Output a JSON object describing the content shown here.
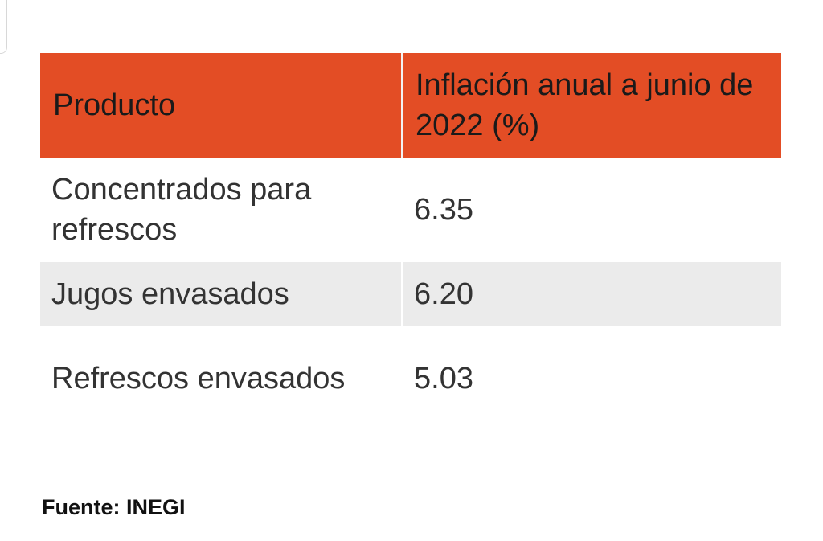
{
  "chart_data": {
    "type": "table",
    "columns": [
      "Producto",
      "Inflación anual a junio de 2022 (%)"
    ],
    "rows": [
      {
        "producto": "Concentrados para refrescos",
        "valor": "6.35"
      },
      {
        "producto": "Jugos envasados",
        "valor": "6.20"
      },
      {
        "producto": "Refrescos envasados",
        "valor": "5.03"
      }
    ],
    "header_color": "#e34d25",
    "stripe_color": "#ebebeb"
  },
  "footer": {
    "source": "Fuente: INEGI"
  }
}
